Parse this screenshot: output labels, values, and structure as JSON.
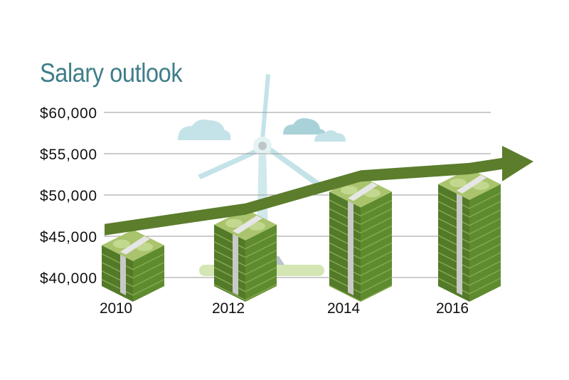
{
  "chart_data": {
    "type": "bar",
    "title": "Salary outlook",
    "xlabel": "",
    "ylabel": "",
    "categories": [
      "2010",
      "2012",
      "2014",
      "2016"
    ],
    "values": [
      45800,
      48300,
      52300,
      53200
    ],
    "ylim": [
      40000,
      60000
    ],
    "yticks": [
      {
        "value": 60000,
        "label": "$60,000"
      },
      {
        "value": 55000,
        "label": "$55,000"
      },
      {
        "value": 50000,
        "label": "$50,000"
      },
      {
        "value": 45000,
        "label": "$45,000"
      },
      {
        "value": 40000,
        "label": "$40,000"
      }
    ],
    "grid": true,
    "trend_arrow": true,
    "colors": {
      "title": "#3f7d8a",
      "arrow": "#5b7d2c",
      "stack": "#5f8b2f",
      "stack_top": "#a9c46c",
      "band": "#c9c9c9",
      "background_art": "#c4e3e8"
    }
  }
}
